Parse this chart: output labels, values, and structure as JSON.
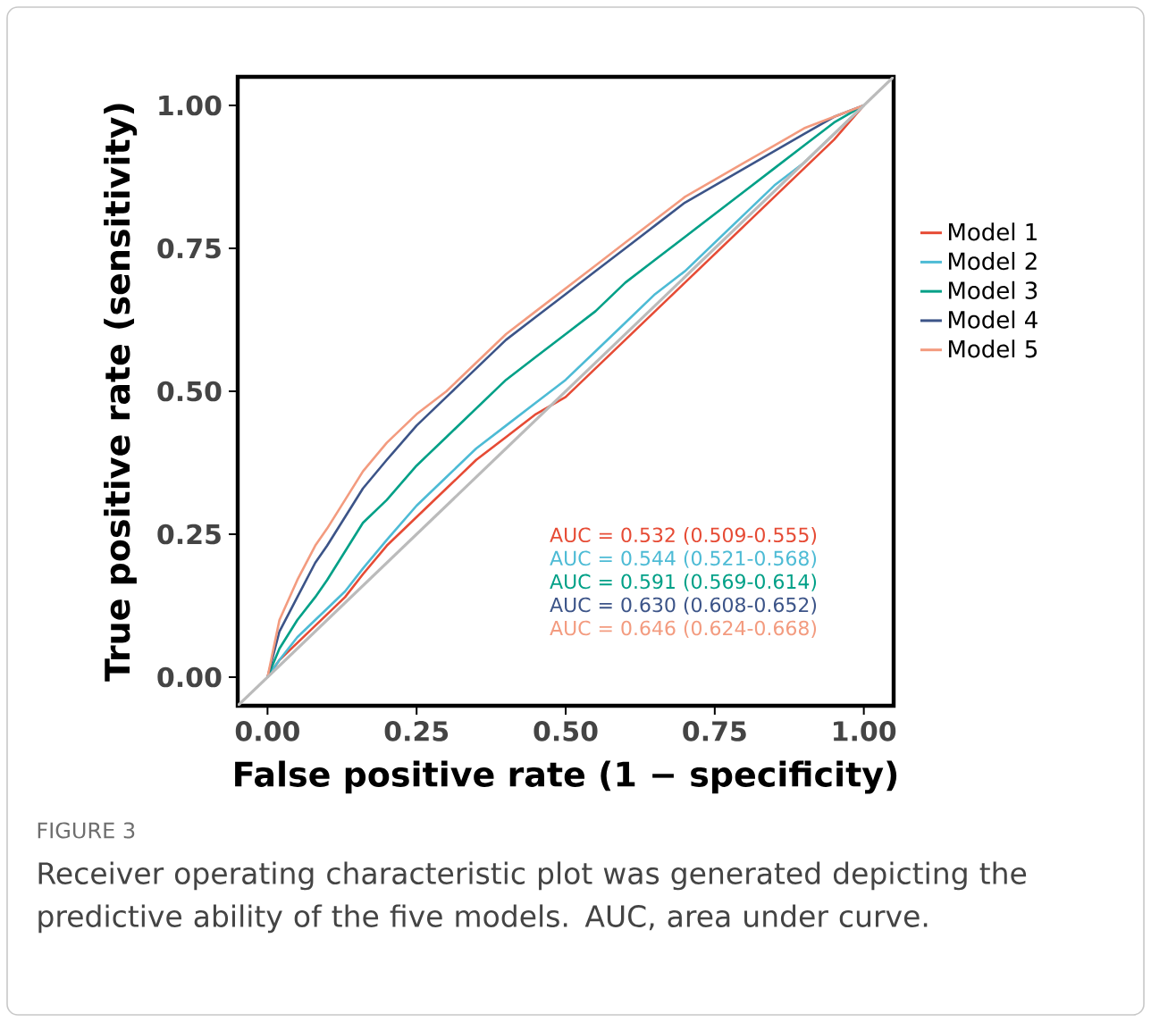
{
  "chart_data": {
    "type": "line",
    "xlabel": "False positive rate (1 − specificity)",
    "ylabel": "True positive rate (sensitivity)",
    "x": [
      0,
      0.02,
      0.05,
      0.08,
      0.1,
      0.13,
      0.16,
      0.2,
      0.25,
      0.3,
      0.35,
      0.4,
      0.45,
      0.5,
      0.55,
      0.6,
      0.65,
      0.7,
      0.75,
      0.8,
      0.85,
      0.9,
      0.95,
      1.0
    ],
    "series": [
      {
        "name": "Model 1",
        "color": "#e64b35",
        "values": [
          0,
          0.03,
          0.06,
          0.09,
          0.11,
          0.14,
          0.18,
          0.23,
          0.28,
          0.33,
          0.38,
          0.42,
          0.46,
          0.49,
          0.54,
          0.59,
          0.64,
          0.69,
          0.74,
          0.79,
          0.84,
          0.89,
          0.94,
          1
        ]
      },
      {
        "name": "Model 2",
        "color": "#4dbbd5",
        "values": [
          0,
          0.03,
          0.07,
          0.1,
          0.12,
          0.15,
          0.19,
          0.24,
          0.3,
          0.35,
          0.4,
          0.44,
          0.48,
          0.52,
          0.57,
          0.62,
          0.67,
          0.71,
          0.76,
          0.81,
          0.86,
          0.9,
          0.95,
          1
        ]
      },
      {
        "name": "Model 3",
        "color": "#00a087",
        "values": [
          0,
          0.05,
          0.1,
          0.14,
          0.17,
          0.22,
          0.27,
          0.31,
          0.37,
          0.42,
          0.47,
          0.52,
          0.56,
          0.6,
          0.64,
          0.69,
          0.73,
          0.77,
          0.81,
          0.85,
          0.89,
          0.93,
          0.97,
          1
        ]
      },
      {
        "name": "Model 4",
        "color": "#3c5488",
        "values": [
          0,
          0.08,
          0.14,
          0.2,
          0.23,
          0.28,
          0.33,
          0.38,
          0.44,
          0.49,
          0.54,
          0.59,
          0.63,
          0.67,
          0.71,
          0.75,
          0.79,
          0.83,
          0.86,
          0.89,
          0.92,
          0.95,
          0.98,
          1
        ]
      },
      {
        "name": "Model 5",
        "color": "#f39b7f",
        "values": [
          0,
          0.1,
          0.17,
          0.23,
          0.26,
          0.31,
          0.36,
          0.41,
          0.46,
          0.5,
          0.55,
          0.6,
          0.64,
          0.68,
          0.72,
          0.76,
          0.8,
          0.84,
          0.87,
          0.9,
          0.93,
          0.96,
          0.98,
          1
        ]
      },
      {
        "color": "#bbbbbb",
        "x": [
          -0.05,
          1.05
        ],
        "values": [
          -0.05,
          1.05
        ]
      }
    ],
    "xlim": [
      -0.05,
      1.05
    ],
    "ylim": [
      -0.05,
      1.05
    ],
    "xticks": [
      {
        "value": 0,
        "label": "0.00"
      },
      {
        "value": 0.25,
        "label": "0.25"
      },
      {
        "value": 0.5,
        "label": "0.50"
      },
      {
        "value": 0.75,
        "label": "0.75"
      },
      {
        "value": 1,
        "label": "1.00"
      }
    ],
    "yticks": [
      {
        "value": 0,
        "label": "0.00"
      },
      {
        "value": 0.25,
        "label": "0.25"
      },
      {
        "value": 0.5,
        "label": "0.50"
      },
      {
        "value": 0.75,
        "label": "0.75"
      },
      {
        "value": 1,
        "label": "1.00"
      }
    ],
    "legend": "right",
    "grid": false,
    "marker": "none",
    "line_style": "solid",
    "annotations": [
      "AUC = 0.532 (0.509-0.555)",
      "AUC = 0.544 (0.521-0.568)",
      "AUC = 0.591 (0.569-0.614)",
      "AUC = 0.630 (0.608-0.652)",
      "AUC = 0.646 (0.624-0.668)",
      "FIGURE 3",
      "Receiver operating characteristic plot was generated depicting the predictive ability of the five models. AUC, area under curve."
    ]
  }
}
